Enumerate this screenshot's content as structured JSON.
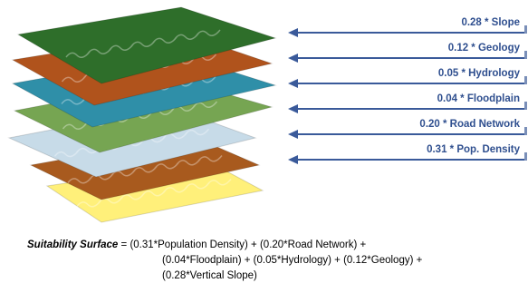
{
  "diagram": {
    "layers": [
      {
        "name": "slope",
        "color": "#2e6e2a"
      },
      {
        "name": "geology",
        "color": "#b0531c"
      },
      {
        "name": "hydrology",
        "color": "#2f8fa8"
      },
      {
        "name": "floodplain",
        "color": "#76a552"
      },
      {
        "name": "road-network",
        "color": "#c7dbe8"
      },
      {
        "name": "population-density",
        "color": "#a85a1e"
      },
      {
        "name": "base",
        "color": "#fff07a"
      }
    ],
    "weights": [
      {
        "label": "0.28 * Slope"
      },
      {
        "label": "0.12 * Geology"
      },
      {
        "label": "0.05 * Hydrology"
      },
      {
        "label": "0.04 * Floodplain"
      },
      {
        "label": "0.20 * Road Network"
      },
      {
        "label": "0.31 * Pop. Density"
      }
    ],
    "formula": {
      "lead": "Suitability Surface",
      "line1": " = (0.31*Population Density) + (0.20*Road Network) +",
      "line2": "(0.04*Floodplain) + (0.05*Hydrology) + (0.12*Geology) +",
      "line3": "(0.28*Vertical Slope)"
    },
    "colors": {
      "arrow": "#3a5a9a",
      "label": "#2f4f8f"
    }
  }
}
